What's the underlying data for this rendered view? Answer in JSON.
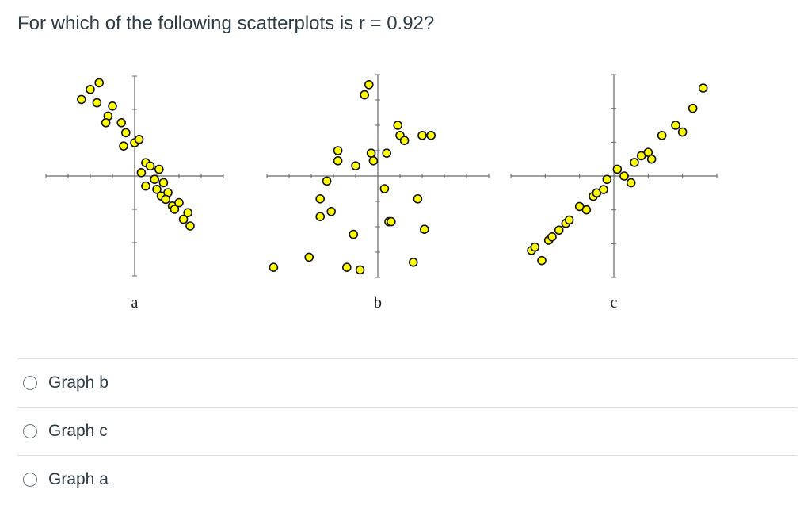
{
  "question": {
    "text": "For which of the following scatterplots is r = 0.92?"
  },
  "chart_data": [
    {
      "type": "scatter",
      "title": "a",
      "x": [
        -2.4,
        -2.0,
        -1.7,
        -1.6,
        -1.2,
        -1.0,
        -1.3,
        -0.6,
        -0.4,
        -0.5,
        0.0,
        0.2,
        0.5,
        0.3,
        0.7,
        0.5,
        0.9,
        1.1,
        1.3,
        1.2,
        1.5,
        1.7,
        2.0,
        2.2,
        1.8,
        2.5,
        2.4,
        1.4,
        1.0
      ],
      "y": [
        2.3,
        2.6,
        2.2,
        2.8,
        1.8,
        2.1,
        1.6,
        1.6,
        1.3,
        0.9,
        1.0,
        1.1,
        0.4,
        0.1,
        0.3,
        -0.3,
        -0.1,
        0.2,
        -0.2,
        -0.6,
        -0.5,
        -0.9,
        -0.8,
        -1.3,
        -1.0,
        -1.5,
        -1.1,
        -0.7,
        -0.4
      ],
      "xlim": [
        -4,
        4
      ],
      "ylim": [
        -3,
        3
      ]
    },
    {
      "type": "scatter",
      "title": "b",
      "x": [
        -4.7,
        -3.1,
        -2.6,
        -2.6,
        -2.3,
        -2.1,
        -1.8,
        -1.8,
        -1.4,
        -1.1,
        -1.0,
        -0.8,
        -0.6,
        -0.4,
        -0.3,
        -0.2,
        0.3,
        0.5,
        0.6,
        0.4,
        0.9,
        1.0,
        1.2,
        1.6,
        2.0,
        2.4,
        1.8,
        2.1
      ],
      "y": [
        -3.6,
        -3.2,
        -1.6,
        -0.9,
        -0.2,
        -1.4,
        1.0,
        0.6,
        -3.6,
        -2.3,
        0.4,
        -3.7,
        3.2,
        3.6,
        0.9,
        0.6,
        -0.5,
        -1.8,
        -1.8,
        0.9,
        2.0,
        1.6,
        1.4,
        -3.4,
        1.6,
        1.6,
        -0.9,
        -2.1
      ],
      "xlim": [
        -5,
        5
      ],
      "ylim": [
        -4,
        4
      ]
    },
    {
      "type": "scatter",
      "title": "c",
      "x": [
        -2.4,
        -2.3,
        -2.1,
        -1.9,
        -1.8,
        -1.6,
        -1.4,
        -1.3,
        -1.0,
        -0.8,
        -0.6,
        -0.5,
        -0.3,
        -0.2,
        0.1,
        0.3,
        0.5,
        0.6,
        0.8,
        1.0,
        1.1,
        1.4,
        1.8,
        2.0,
        2.3,
        2.6
      ],
      "y": [
        -2.2,
        -2.1,
        -2.5,
        -1.9,
        -1.8,
        -1.6,
        -1.4,
        -1.3,
        -0.9,
        -1.0,
        -0.6,
        -0.5,
        -0.4,
        -0.1,
        0.2,
        0.0,
        -0.2,
        0.4,
        0.6,
        0.7,
        0.5,
        1.2,
        1.5,
        1.3,
        2.0,
        2.6
      ],
      "xlim": [
        -3,
        3
      ],
      "ylim": [
        -3,
        3
      ]
    }
  ],
  "answers": [
    {
      "label": "Graph b"
    },
    {
      "label": "Graph c"
    },
    {
      "label": "Graph a"
    }
  ],
  "colors": {
    "marker_fill": "#ffff00",
    "marker_stroke": "#111111",
    "axis": "#666666"
  }
}
